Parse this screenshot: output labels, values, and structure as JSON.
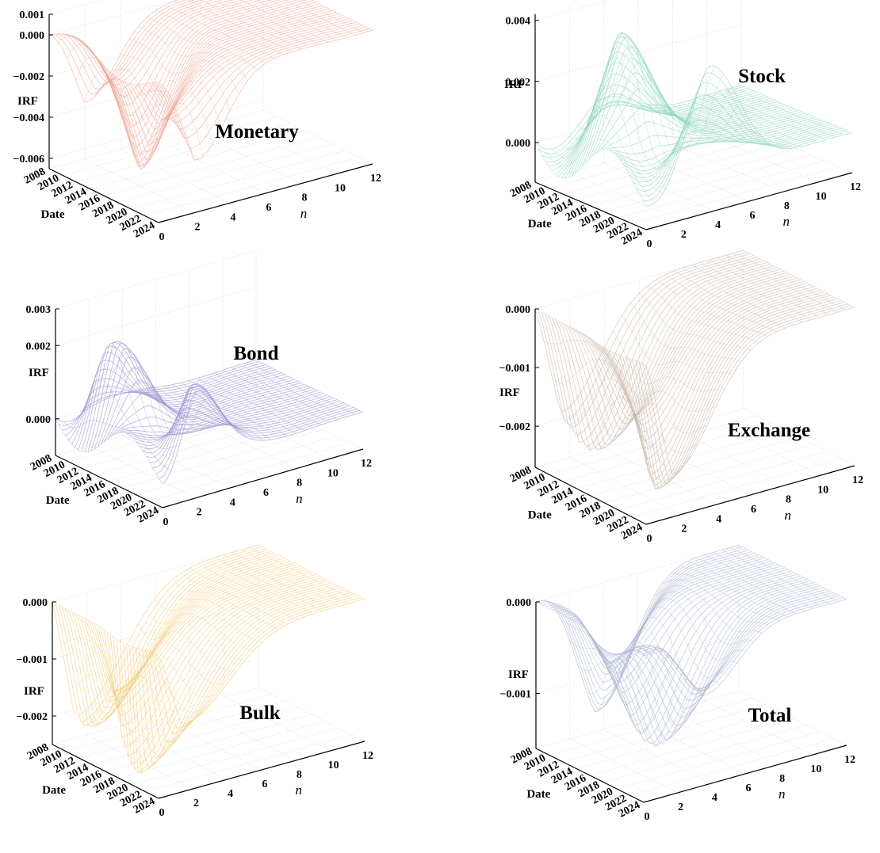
{
  "figure": {
    "description_axes": "3D surfaces of impulse response functions (IRF) over horizon n and Date",
    "date_ticks": [
      "2008",
      "2010",
      "2012",
      "2014",
      "2016",
      "2018",
      "2020",
      "2022",
      "2024"
    ],
    "n_ticks": [
      "0",
      "2",
      "4",
      "6",
      "8",
      "10",
      "12"
    ]
  },
  "chart_data": [
    {
      "type": "surface",
      "title": "Monetary",
      "color": "#f0a898",
      "xlabel": "n",
      "ylabel": "Date",
      "zlabel": "IRF",
      "xlim": [
        0,
        12
      ],
      "ylim": [
        2008,
        2024
      ],
      "zlim": [
        -0.0065,
        0.001
      ],
      "z_ticks": [
        0.001,
        0.0,
        -0.002,
        -0.004,
        -0.006
      ],
      "z_tick_labels": [
        "0.001",
        "0.000",
        "−0.002",
        "−0.004",
        "−0.006"
      ],
      "peak_response": -0.0055,
      "peak_horizon": 2
    },
    {
      "type": "surface",
      "title": "Stock",
      "color": "#8fd6c2",
      "xlabel": "n",
      "ylabel": "Date",
      "zlabel": "IRF",
      "xlim": [
        0,
        12
      ],
      "ylim": [
        2008,
        2024
      ],
      "zlim": [
        -0.0013,
        0.0042
      ],
      "z_ticks": [
        0.004,
        0.002,
        0.0
      ],
      "z_tick_labels": [
        "0.004",
        "0.002",
        "0.000"
      ],
      "peak_response": 0.0035,
      "peak_horizon": 3
    },
    {
      "type": "surface",
      "title": "Bond",
      "color": "#9a92d2",
      "xlabel": "n",
      "ylabel": "Date",
      "zlabel": "IRF",
      "xlim": [
        0,
        12
      ],
      "ylim": [
        2008,
        2024
      ],
      "zlim": [
        -0.001,
        0.003
      ],
      "z_ticks": [
        0.003,
        0.002,
        0.0
      ],
      "z_tick_labels": [
        "0.003",
        "0.002",
        "0.000"
      ],
      "peak_response": 0.0022,
      "peak_horizon": 2
    },
    {
      "type": "surface",
      "title": "Exchange",
      "color": "#c8b8a6",
      "xlabel": "n",
      "ylabel": "Date",
      "zlabel": "IRF",
      "xlim": [
        0,
        12
      ],
      "ylim": [
        2008,
        2024
      ],
      "zlim": [
        -0.0027,
        0.0
      ],
      "z_ticks": [
        0.0,
        -0.001,
        -0.002
      ],
      "z_tick_labels": [
        "0.000",
        "−0.001",
        "−0.002"
      ],
      "peak_response": -0.0024,
      "peak_horizon": 2
    },
    {
      "type": "surface",
      "title": "Bulk",
      "color": "#f5cd7a",
      "xlabel": "n",
      "ylabel": "Date",
      "zlabel": "IRF",
      "xlim": [
        0,
        12
      ],
      "ylim": [
        2008,
        2024
      ],
      "zlim": [
        -0.0025,
        0.0
      ],
      "z_ticks": [
        0.0,
        -0.001,
        -0.002
      ],
      "z_tick_labels": [
        "0.000",
        "−0.001",
        "−0.002"
      ],
      "peak_response": -0.0023,
      "peak_horizon": 1
    },
    {
      "type": "surface",
      "title": "Total",
      "color": "#aab4d2",
      "xlabel": "n",
      "ylabel": "Date",
      "zlabel": "IRF",
      "xlim": [
        0,
        12
      ],
      "ylim": [
        2008,
        2024
      ],
      "zlim": [
        -0.0016,
        0.0
      ],
      "z_ticks": [
        0.0,
        -0.001
      ],
      "z_tick_labels": [
        "0.000",
        "−0.001"
      ],
      "peak_response": -0.0014,
      "peak_horizon": 3
    }
  ]
}
